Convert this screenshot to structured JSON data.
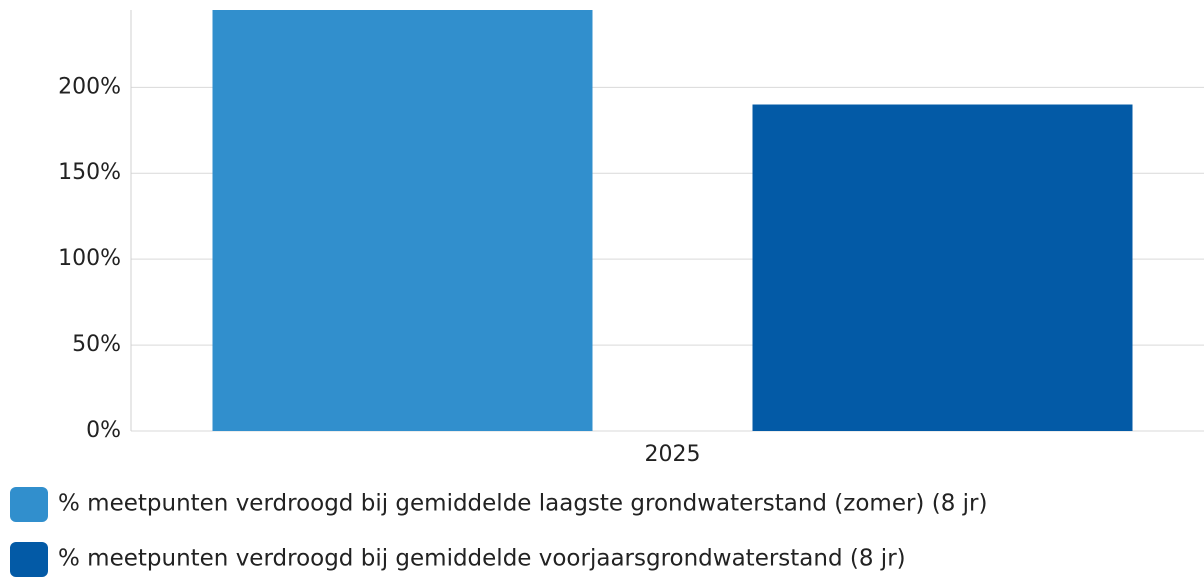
{
  "chart_data": {
    "type": "bar",
    "categories": [
      "2025"
    ],
    "series": [
      {
        "name": "% meetpunten verdroogd bij gemiddelde laagste grondwaterstand (zomer) (8 jr)",
        "color": "#318fcd",
        "values": [
          245
        ]
      },
      {
        "name": "% meetpunten verdroogd bij gemiddelde voorjaarsgrondwaterstand (8 jr)",
        "color": "#035aa6",
        "values": [
          190
        ]
      }
    ],
    "ylim": [
      0,
      245
    ],
    "yticks": [
      {
        "value": 0,
        "label": "0%"
      },
      {
        "value": 50,
        "label": "50%"
      },
      {
        "value": 100,
        "label": "100%"
      },
      {
        "value": 150,
        "label": "150%"
      },
      {
        "value": 200,
        "label": "200%"
      }
    ],
    "grid": true
  }
}
